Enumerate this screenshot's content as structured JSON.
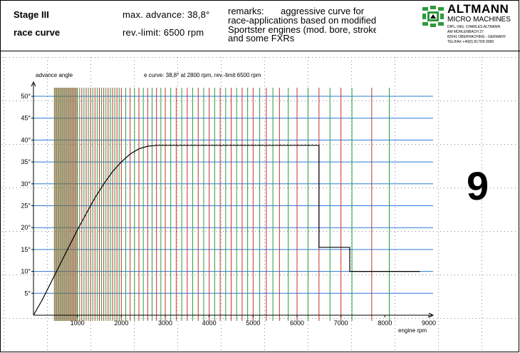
{
  "header": {
    "stage": "Stage III",
    "curve_name": "race curve",
    "max_advance": "max. advance: 38,8°",
    "rev_limit": "rev.-limit:  6500 rpm",
    "remarks_label": "remarks:",
    "remarks_line1": "aggressive curve for",
    "remarks_line2": "race-applications based on modified",
    "remarks_line3": "Sportster engines (mod. bore, stroke",
    "remarks_line4": "and some FXRs"
  },
  "logo": {
    "brand": "ALTMANN",
    "sub": "MICRO MACHINES",
    "addr1": "DIPL.-ING. CHARLES ALTMANN",
    "addr2": "AM MÜHLENBACH 27",
    "addr3": "82041 OBERHACHING - GERMANY",
    "addr4": "TEL/FAX +49(0) 8170/9 9990"
  },
  "page_number": "9",
  "colors": {
    "grid_blue": "#2a7ad8",
    "grid_red": "#c83228",
    "grid_green": "#2e9a3c",
    "curve": "#000000",
    "dots": "#888888"
  },
  "chart_data": {
    "type": "line",
    "title": "e curve: 38,8° at 2800 rpm, rev.-limit 6500 rpm",
    "xlabel": "engine rpm",
    "ylabel": "advance angle",
    "xlim": [
      0,
      9000
    ],
    "ylim": [
      0,
      50
    ],
    "x_ticks": [
      1000,
      2000,
      3000,
      4000,
      5000,
      6000,
      7000,
      8000,
      9000
    ],
    "y_ticks": [
      "5°",
      "10°",
      "15°",
      "20°",
      "25°",
      "30°",
      "35°",
      "40°",
      "45°",
      "50°"
    ],
    "y_tick_values": [
      5,
      10,
      15,
      20,
      25,
      30,
      35,
      40,
      45,
      50
    ],
    "series": [
      {
        "x": [
          0,
          200,
          400,
          600,
          800,
          1000,
          1200,
          1400,
          1600,
          1800,
          2000,
          2200,
          2400,
          2600,
          2800,
          6500,
          6500,
          7200,
          7200,
          8800
        ],
        "y": [
          0,
          3.5,
          7.5,
          11.5,
          15.5,
          19.5,
          23.2,
          26.8,
          30.0,
          32.8,
          35.0,
          36.8,
          38.0,
          38.6,
          38.8,
          38.8,
          15.5,
          15.5,
          10.0,
          10.0
        ]
      }
    ],
    "vertical_lines_red": [
      500,
      550,
      600,
      650,
      700,
      750,
      800,
      850,
      900,
      950,
      1000,
      1100,
      1200,
      1300,
      1400,
      1500,
      1600,
      1700,
      1800,
      1900,
      2000,
      2200,
      2400,
      2600,
      2800,
      3000,
      3250,
      3500,
      3750,
      4000,
      4250,
      4500,
      4750,
      5000,
      5300,
      5600,
      6000,
      6500,
      7000,
      7700
    ],
    "vertical_lines_green": [
      475,
      525,
      575,
      625,
      675,
      725,
      775,
      825,
      875,
      925,
      975,
      1050,
      1150,
      1250,
      1350,
      1450,
      1550,
      1650,
      1750,
      1850,
      1950,
      2100,
      2300,
      2500,
      2700,
      2900,
      3125,
      3375,
      3625,
      3875,
      4125,
      4375,
      4625,
      4875,
      5150,
      5450,
      5800,
      6250,
      6750,
      7250,
      8100
    ],
    "grid": true
  }
}
